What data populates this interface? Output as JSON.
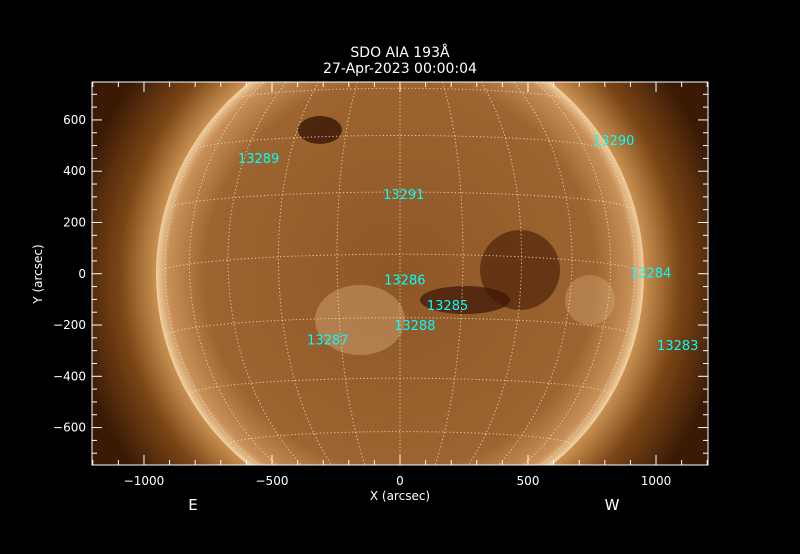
{
  "chart_data": {
    "type": "image",
    "title": "SDO AIA 193Å",
    "subtitle": "27-Apr-2023 00:00:04",
    "xlabel": "X (arcsec)",
    "ylabel": "Y (arcsec)",
    "xlim": [
      -1203,
      1203
    ],
    "ylim": [
      -746,
      748
    ],
    "x_ticks": [
      -1000,
      -500,
      0,
      500,
      1000
    ],
    "y_ticks": [
      -600,
      -400,
      -200,
      0,
      200,
      400,
      600
    ],
    "x_tick_labels": [
      "−1000",
      "−500",
      "0",
      "500",
      "1000"
    ],
    "y_tick_labels": [
      "−600",
      "−400",
      "−200",
      "0",
      "200",
      "400",
      "600"
    ],
    "solar_radius_arcsec": 950,
    "grid": "heliographic lat/lon every 15°, dotted",
    "grid_color": "#f0e0c0",
    "label_color": "#00ffff",
    "colormap": "SDO AIA 193 (brown/gold)",
    "direction_labels": {
      "east": "E",
      "west": "W"
    },
    "active_regions": [
      {
        "id": "13289",
        "x": -633,
        "y": 452
      },
      {
        "id": "13290",
        "x": 754,
        "y": 522
      },
      {
        "id": "13291",
        "x": -66,
        "y": 312
      },
      {
        "id": "13286",
        "x": -62,
        "y": -23
      },
      {
        "id": "13285",
        "x": 105,
        "y": -121
      },
      {
        "id": "13288",
        "x": -23,
        "y": -199
      },
      {
        "id": "13287",
        "x": -363,
        "y": -257
      },
      {
        "id": "13284",
        "x": 898,
        "y": 4
      },
      {
        "id": "13283",
        "x": 1004,
        "y": -277
      }
    ]
  }
}
